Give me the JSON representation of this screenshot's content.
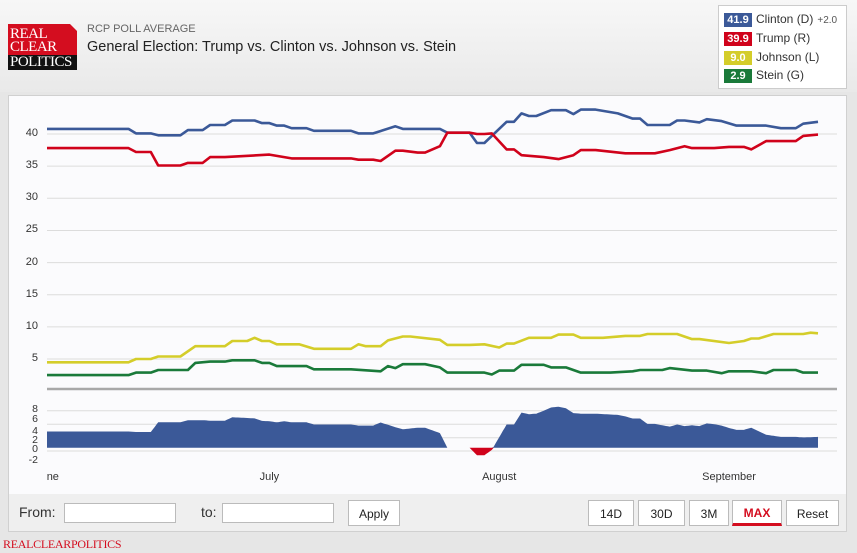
{
  "header": {
    "logo_lines": [
      "REAL",
      "CLEAR",
      "POLITICS"
    ],
    "subtitle": "RCP POLL AVERAGE",
    "title": "General Election: Trump vs. Clinton vs. Johnson vs. Stein"
  },
  "legend": [
    {
      "value": "41.9",
      "label": "Clinton (D)",
      "change": "+2.0",
      "color": "#3b5998"
    },
    {
      "value": "39.9",
      "label": "Trump (R)",
      "change": "",
      "color": "#d0021b"
    },
    {
      "value": "9.0",
      "label": "Johnson (L)",
      "change": "",
      "color": "#d4cd2a"
    },
    {
      "value": "2.9",
      "label": "Stein (G)",
      "change": "",
      "color": "#1a7a3a"
    }
  ],
  "controls": {
    "from_label": "From:",
    "from_value": "",
    "to_label": "to:",
    "to_value": "",
    "apply_label": "Apply",
    "ranges": [
      "14D",
      "30D",
      "3M",
      "MAX",
      "Reset"
    ],
    "active_range": "MAX"
  },
  "footer": "REALCLEARPOLITICS",
  "chart_data": [
    {
      "type": "line",
      "x_type": "date",
      "xlim": [
        "2016-06-01",
        "2016-09-13"
      ],
      "ylim": [
        0,
        45
      ],
      "yticks": [
        5,
        10,
        15,
        20,
        25,
        30,
        35,
        40
      ],
      "xticks": [
        {
          "date": "2016-06-01",
          "label": "June"
        },
        {
          "date": "2016-07-01",
          "label": "July"
        },
        {
          "date": "2016-08-01",
          "label": "August"
        },
        {
          "date": "2016-09-01",
          "label": "September"
        }
      ],
      "grid": true,
      "legend_placement": "top-right",
      "series": [
        {
          "name": "Clinton (D)",
          "color": "#3b5998",
          "points": [
            [
              "2016-06-01",
              40.8
            ],
            [
              "2016-06-12",
              40.8
            ],
            [
              "2016-06-13",
              40.1
            ],
            [
              "2016-06-15",
              40.1
            ],
            [
              "2016-06-16",
              39.8
            ],
            [
              "2016-06-19",
              39.8
            ],
            [
              "2016-06-20",
              40.6
            ],
            [
              "2016-06-22",
              40.6
            ],
            [
              "2016-06-23",
              41.4
            ],
            [
              "2016-06-25",
              41.4
            ],
            [
              "2016-06-26",
              42.1
            ],
            [
              "2016-06-29",
              42.1
            ],
            [
              "2016-06-30",
              41.7
            ],
            [
              "2016-07-01",
              41.7
            ],
            [
              "2016-07-02",
              41.3
            ],
            [
              "2016-07-03",
              41.3
            ],
            [
              "2016-07-04",
              40.9
            ],
            [
              "2016-07-06",
              40.9
            ],
            [
              "2016-07-07",
              40.5
            ],
            [
              "2016-07-12",
              40.5
            ],
            [
              "2016-07-13",
              40.1
            ],
            [
              "2016-07-15",
              40.1
            ],
            [
              "2016-07-18",
              41.2
            ],
            [
              "2016-07-19",
              40.8
            ],
            [
              "2016-07-24",
              40.8
            ],
            [
              "2016-07-25",
              40.2
            ],
            [
              "2016-07-28",
              40.2
            ],
            [
              "2016-07-29",
              38.6
            ],
            [
              "2016-07-30",
              38.6
            ],
            [
              "2016-08-02",
              41.9
            ],
            [
              "2016-08-03",
              41.9
            ],
            [
              "2016-08-04",
              43.2
            ],
            [
              "2016-08-05",
              42.8
            ],
            [
              "2016-08-06",
              42.8
            ],
            [
              "2016-08-08",
              43.7
            ],
            [
              "2016-08-10",
              43.7
            ],
            [
              "2016-08-11",
              43.1
            ],
            [
              "2016-08-12",
              43.8
            ],
            [
              "2016-08-14",
              43.8
            ],
            [
              "2016-08-17",
              43.2
            ],
            [
              "2016-08-19",
              42.4
            ],
            [
              "2016-08-20",
              42.4
            ],
            [
              "2016-08-21",
              41.4
            ],
            [
              "2016-08-24",
              41.4
            ],
            [
              "2016-08-25",
              42.1
            ],
            [
              "2016-08-26",
              42.1
            ],
            [
              "2016-08-28",
              41.8
            ],
            [
              "2016-08-29",
              42.3
            ],
            [
              "2016-08-31",
              42.0
            ],
            [
              "2016-09-02",
              41.3
            ],
            [
              "2016-09-06",
              41.3
            ],
            [
              "2016-09-08",
              40.9
            ],
            [
              "2016-09-10",
              40.9
            ],
            [
              "2016-09-11",
              41.6
            ],
            [
              "2016-09-13",
              41.9
            ]
          ]
        },
        {
          "name": "Trump (R)",
          "color": "#d0021b",
          "points": [
            [
              "2016-06-01",
              37.8
            ],
            [
              "2016-06-12",
              37.8
            ],
            [
              "2016-06-13",
              37.2
            ],
            [
              "2016-06-15",
              37.2
            ],
            [
              "2016-06-16",
              35.1
            ],
            [
              "2016-06-19",
              35.1
            ],
            [
              "2016-06-20",
              35.5
            ],
            [
              "2016-06-22",
              35.5
            ],
            [
              "2016-06-23",
              36.4
            ],
            [
              "2016-06-25",
              36.4
            ],
            [
              "2016-07-01",
              36.8
            ],
            [
              "2016-07-04",
              36.2
            ],
            [
              "2016-07-12",
              36.2
            ],
            [
              "2016-07-13",
              36.0
            ],
            [
              "2016-07-15",
              36.0
            ],
            [
              "2016-07-16",
              35.8
            ],
            [
              "2016-07-18",
              37.4
            ],
            [
              "2016-07-19",
              37.4
            ],
            [
              "2016-07-21",
              37.1
            ],
            [
              "2016-07-22",
              37.1
            ],
            [
              "2016-07-24",
              38.1
            ],
            [
              "2016-07-25",
              40.2
            ],
            [
              "2016-07-28",
              40.2
            ],
            [
              "2016-07-29",
              40.0
            ],
            [
              "2016-07-30",
              40.0
            ],
            [
              "2016-07-31",
              40.1
            ],
            [
              "2016-08-02",
              37.6
            ],
            [
              "2016-08-03",
              37.6
            ],
            [
              "2016-08-04",
              36.7
            ],
            [
              "2016-08-07",
              36.4
            ],
            [
              "2016-08-09",
              36.1
            ],
            [
              "2016-08-11",
              36.7
            ],
            [
              "2016-08-12",
              37.5
            ],
            [
              "2016-08-14",
              37.5
            ],
            [
              "2016-08-18",
              37.0
            ],
            [
              "2016-08-22",
              37.0
            ],
            [
              "2016-08-24",
              37.5
            ],
            [
              "2016-08-26",
              38.1
            ],
            [
              "2016-08-27",
              37.8
            ],
            [
              "2016-08-30",
              37.8
            ],
            [
              "2016-09-01",
              38.0
            ],
            [
              "2016-09-03",
              38.0
            ],
            [
              "2016-09-04",
              37.6
            ],
            [
              "2016-09-06",
              38.9
            ],
            [
              "2016-09-10",
              38.9
            ],
            [
              "2016-09-11",
              39.7
            ],
            [
              "2016-09-13",
              39.9
            ]
          ]
        },
        {
          "name": "Johnson (L)",
          "color": "#d4cd2a",
          "points": [
            [
              "2016-06-01",
              4.5
            ],
            [
              "2016-06-12",
              4.5
            ],
            [
              "2016-06-13",
              5.0
            ],
            [
              "2016-06-15",
              5.0
            ],
            [
              "2016-06-16",
              5.4
            ],
            [
              "2016-06-19",
              5.4
            ],
            [
              "2016-06-21",
              7.0
            ],
            [
              "2016-06-25",
              7.0
            ],
            [
              "2016-06-26",
              7.8
            ],
            [
              "2016-06-28",
              7.8
            ],
            [
              "2016-06-29",
              8.3
            ],
            [
              "2016-06-30",
              7.8
            ],
            [
              "2016-07-01",
              7.8
            ],
            [
              "2016-07-02",
              7.3
            ],
            [
              "2016-07-05",
              7.3
            ],
            [
              "2016-07-07",
              6.6
            ],
            [
              "2016-07-12",
              6.6
            ],
            [
              "2016-07-13",
              7.3
            ],
            [
              "2016-07-14",
              7.0
            ],
            [
              "2016-07-16",
              7.0
            ],
            [
              "2016-07-17",
              7.9
            ],
            [
              "2016-07-19",
              8.5
            ],
            [
              "2016-07-20",
              8.5
            ],
            [
              "2016-07-24",
              8.0
            ],
            [
              "2016-07-25",
              7.2
            ],
            [
              "2016-07-28",
              7.2
            ],
            [
              "2016-07-30",
              7.3
            ],
            [
              "2016-08-01",
              6.8
            ],
            [
              "2016-08-02",
              7.4
            ],
            [
              "2016-08-03",
              7.4
            ],
            [
              "2016-08-05",
              8.3
            ],
            [
              "2016-08-08",
              8.3
            ],
            [
              "2016-08-09",
              8.8
            ],
            [
              "2016-08-11",
              8.8
            ],
            [
              "2016-08-12",
              8.3
            ],
            [
              "2016-08-15",
              8.3
            ],
            [
              "2016-08-18",
              8.6
            ],
            [
              "2016-08-20",
              8.6
            ],
            [
              "2016-08-21",
              8.9
            ],
            [
              "2016-08-25",
              8.9
            ],
            [
              "2016-08-27",
              8.1
            ],
            [
              "2016-08-28",
              8.1
            ],
            [
              "2016-09-01",
              7.5
            ],
            [
              "2016-09-03",
              7.8
            ],
            [
              "2016-09-04",
              8.2
            ],
            [
              "2016-09-05",
              8.2
            ],
            [
              "2016-09-07",
              8.9
            ],
            [
              "2016-09-11",
              8.9
            ],
            [
              "2016-09-12",
              9.1
            ],
            [
              "2016-09-13",
              9.0
            ]
          ]
        },
        {
          "name": "Stein (G)",
          "color": "#1a7a3a",
          "points": [
            [
              "2016-06-01",
              2.5
            ],
            [
              "2016-06-12",
              2.5
            ],
            [
              "2016-06-13",
              2.9
            ],
            [
              "2016-06-15",
              2.9
            ],
            [
              "2016-06-16",
              3.3
            ],
            [
              "2016-06-20",
              3.3
            ],
            [
              "2016-06-21",
              4.4
            ],
            [
              "2016-06-23",
              4.6
            ],
            [
              "2016-06-25",
              4.6
            ],
            [
              "2016-06-26",
              4.8
            ],
            [
              "2016-06-29",
              4.8
            ],
            [
              "2016-06-30",
              4.4
            ],
            [
              "2016-07-01",
              4.4
            ],
            [
              "2016-07-02",
              3.9
            ],
            [
              "2016-07-06",
              3.9
            ],
            [
              "2016-07-07",
              3.4
            ],
            [
              "2016-07-12",
              3.4
            ],
            [
              "2016-07-16",
              3.1
            ],
            [
              "2016-07-17",
              3.9
            ],
            [
              "2016-07-18",
              3.6
            ],
            [
              "2016-07-19",
              4.2
            ],
            [
              "2016-07-22",
              4.2
            ],
            [
              "2016-07-24",
              3.7
            ],
            [
              "2016-07-25",
              2.9
            ],
            [
              "2016-07-30",
              2.9
            ],
            [
              "2016-07-31",
              2.6
            ],
            [
              "2016-08-01",
              3.2
            ],
            [
              "2016-08-03",
              3.2
            ],
            [
              "2016-08-04",
              4.1
            ],
            [
              "2016-08-07",
              4.1
            ],
            [
              "2016-08-08",
              3.7
            ],
            [
              "2016-08-10",
              3.7
            ],
            [
              "2016-08-12",
              2.9
            ],
            [
              "2016-08-16",
              2.9
            ],
            [
              "2016-08-19",
              3.1
            ],
            [
              "2016-08-20",
              3.3
            ],
            [
              "2016-08-23",
              3.3
            ],
            [
              "2016-08-24",
              3.6
            ],
            [
              "2016-08-27",
              3.2
            ],
            [
              "2016-08-29",
              3.2
            ],
            [
              "2016-08-31",
              2.8
            ],
            [
              "2016-09-01",
              3.1
            ],
            [
              "2016-09-04",
              3.1
            ],
            [
              "2016-09-06",
              2.8
            ],
            [
              "2016-09-07",
              3.3
            ],
            [
              "2016-09-10",
              3.3
            ],
            [
              "2016-09-11",
              2.9
            ],
            [
              "2016-09-13",
              2.9
            ]
          ]
        }
      ]
    },
    {
      "type": "area",
      "description_of_values": "Clinton minus Trump spread",
      "x_type": "date",
      "xlim": [
        "2016-06-01",
        "2016-09-13"
      ],
      "yticks": [
        -2,
        0,
        2,
        4,
        6,
        8
      ],
      "positive_color": "#3b5998",
      "negative_color": "#d0021b"
    }
  ]
}
